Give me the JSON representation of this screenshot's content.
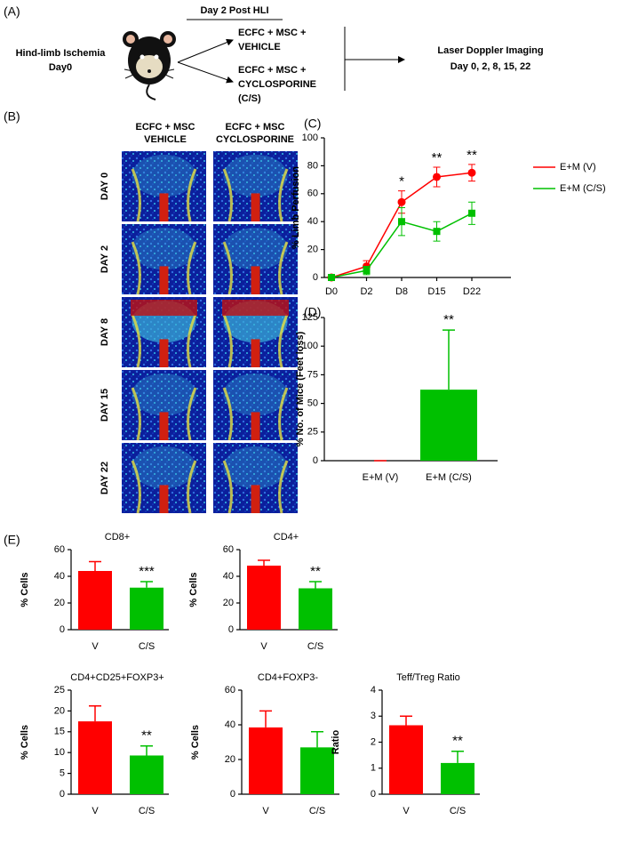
{
  "panel_a": {
    "label": "(A)",
    "start": [
      "Hind-limb Ischemia",
      "Day0"
    ],
    "timepoint": "Day 2 Post HLI",
    "group_1": [
      "ECFC + MSC +",
      "VEHICLE"
    ],
    "group_2": [
      "ECFC + MSC +",
      "CYCLOSPORINE",
      "(C/S)"
    ],
    "readout": [
      "Laser Doppler Imaging",
      "Day 0, 2, 8, 15, 22"
    ]
  },
  "panel_b": {
    "label": "(B)",
    "columns": [
      [
        "ECFC + MSC",
        "VEHICLE"
      ],
      [
        "ECFC + MSC",
        "CYCLOSPORINE"
      ]
    ],
    "rows": [
      "DAY 0",
      "DAY 2",
      "DAY 8",
      "DAY 15",
      "DAY 22"
    ]
  },
  "panel_e": {
    "label": "(E)"
  },
  "chart_data": [
    {
      "type": "line",
      "panel_label": "(C)",
      "y_label": "% Limb Perfusion",
      "categories": [
        "D0",
        "D2",
        "D8",
        "D15",
        "D22"
      ],
      "series": [
        {
          "name": "E+M (V)",
          "color": "#ff0000",
          "marker": "circle",
          "values": [
            0,
            8,
            54,
            72,
            75
          ],
          "errors": [
            1,
            4,
            8,
            7,
            6
          ]
        },
        {
          "name": "E+M (C/S)",
          "color": "#00c000",
          "marker": "square",
          "values": [
            0,
            5,
            40,
            33,
            46
          ],
          "errors": [
            1,
            3,
            10,
            7,
            8
          ]
        }
      ],
      "significance": [
        null,
        null,
        "*",
        "**",
        "**"
      ],
      "ylim": [
        0,
        100
      ],
      "yticks": [
        0,
        20,
        40,
        60,
        80,
        100
      ],
      "legend": "right"
    },
    {
      "type": "bar",
      "panel_label": "(D)",
      "y_label": "% No. of Mice (Feet loss)",
      "categories": [
        "E+M (V)",
        "E+M (C/S)"
      ],
      "values": [
        0,
        62
      ],
      "errors": [
        0,
        52
      ],
      "colors": [
        "#ff0000",
        "#00c000"
      ],
      "significance": [
        null,
        "**"
      ],
      "ylim": [
        0,
        125
      ],
      "yticks": [
        0,
        25,
        50,
        75,
        100,
        125
      ]
    },
    {
      "type": "bar",
      "title": "CD8+",
      "y_label": "% Cells",
      "categories": [
        "V",
        "C/S"
      ],
      "values": [
        44,
        31.5
      ],
      "errors": [
        7,
        4.5
      ],
      "colors": [
        "#ff0000",
        "#00c000"
      ],
      "significance": [
        null,
        "***"
      ],
      "ylim": [
        0,
        60
      ],
      "yticks": [
        0,
        20,
        40,
        60
      ]
    },
    {
      "type": "bar",
      "title": "CD4+",
      "y_label": "% Cells",
      "categories": [
        "V",
        "C/S"
      ],
      "values": [
        48,
        31
      ],
      "errors": [
        4,
        5
      ],
      "colors": [
        "#ff0000",
        "#00c000"
      ],
      "significance": [
        null,
        "**"
      ],
      "ylim": [
        0,
        60
      ],
      "yticks": [
        0,
        20,
        40,
        60
      ]
    },
    {
      "type": "bar",
      "title": "CD4+CD25+FOXP3+",
      "y_label": "% Cells",
      "categories": [
        "V",
        "C/S"
      ],
      "values": [
        17.5,
        9.3
      ],
      "errors": [
        3.7,
        2.3
      ],
      "colors": [
        "#ff0000",
        "#00c000"
      ],
      "significance": [
        null,
        "**"
      ],
      "ylim": [
        0,
        25
      ],
      "yticks": [
        0,
        5,
        10,
        15,
        20,
        25
      ]
    },
    {
      "type": "bar",
      "title": "CD4+FOXP3-",
      "y_label": "% Cells",
      "categories": [
        "V",
        "C/S"
      ],
      "values": [
        38.5,
        27
      ],
      "errors": [
        9.5,
        9
      ],
      "colors": [
        "#ff0000",
        "#00c000"
      ],
      "ylim": [
        0,
        60
      ],
      "yticks": [
        0,
        20,
        40,
        60
      ]
    },
    {
      "type": "bar",
      "title": "Teff/Treg Ratio",
      "y_label": "Ratio",
      "categories": [
        "V",
        "C/S"
      ],
      "values": [
        2.65,
        1.2
      ],
      "errors": [
        0.35,
        0.45
      ],
      "colors": [
        "#ff0000",
        "#00c000"
      ],
      "significance": [
        null,
        "**"
      ],
      "ylim": [
        0,
        4
      ],
      "yticks": [
        0,
        1,
        2,
        3,
        4
      ]
    }
  ]
}
